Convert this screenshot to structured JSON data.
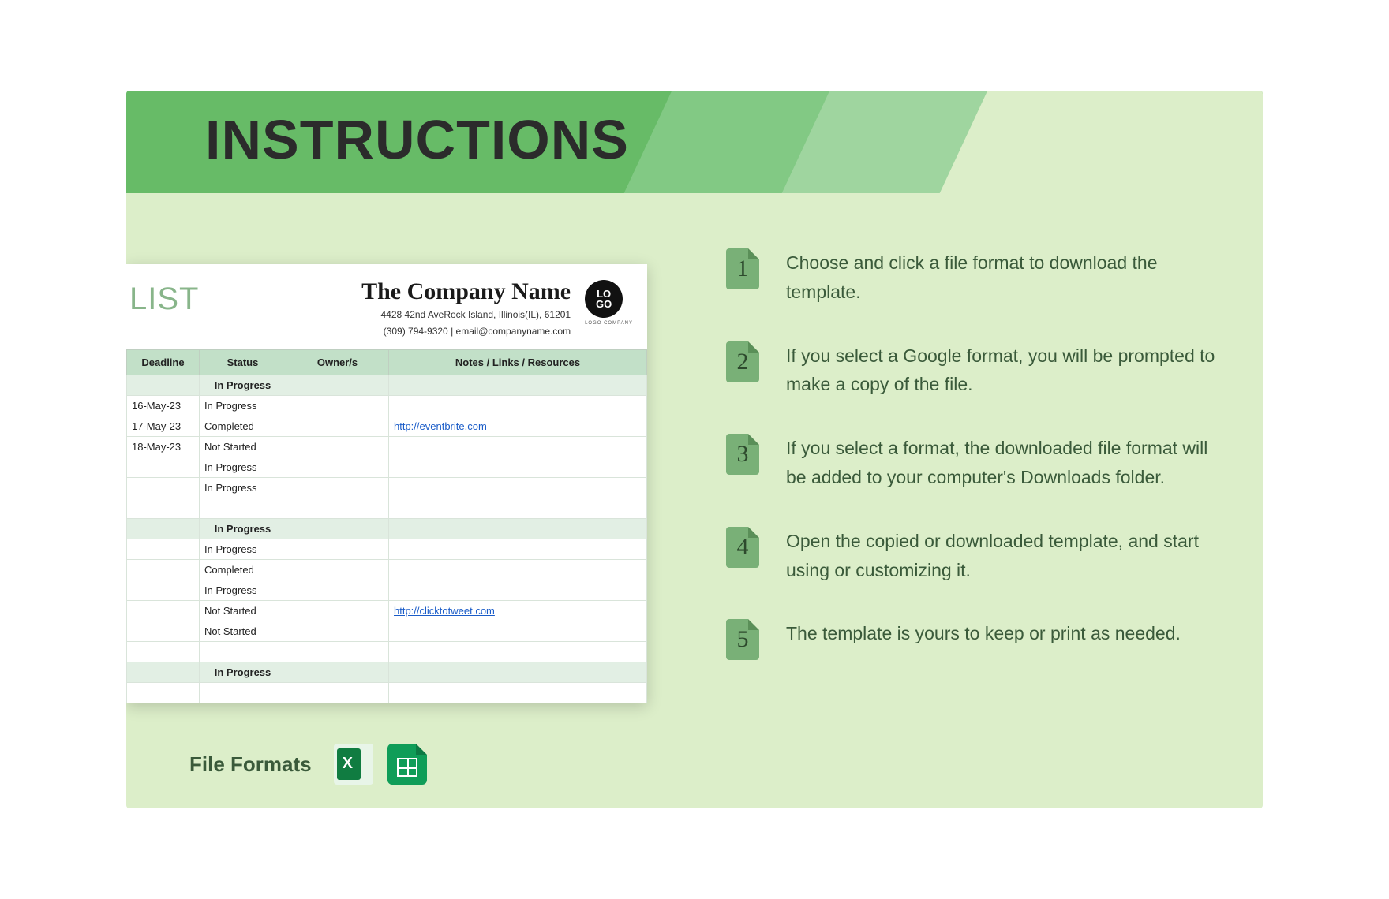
{
  "header": {
    "title": "INSTRUCTIONS"
  },
  "colors": {
    "page_bg": "#dceec9",
    "banner": "#67bb67",
    "stripe1": "#82c984",
    "stripe2": "#9fd59f",
    "badge": "#79b077",
    "badge_fold": "#5a8f58",
    "text_green": "#3a5a3a",
    "table_header_bg": "#c2e0c8",
    "section_bg": "#e2efe4",
    "link": "#1a5cc8"
  },
  "steps": [
    {
      "n": "1",
      "text": "Choose and click a file format to download the template."
    },
    {
      "n": "2",
      "text": "If you select a Google format, you will be prompted to make a copy of the file."
    },
    {
      "n": "3",
      "text": "If you select a format, the downloaded file format will be added to your computer's Downloads folder."
    },
    {
      "n": "4",
      "text": "Open the copied or downloaded template, and start using or customizing it."
    },
    {
      "n": "5",
      "text": "The template is yours to keep or print as needed."
    }
  ],
  "sheet": {
    "list_label": "LIST",
    "company": {
      "name": "The Company Name",
      "address": "4428 42nd AveRock Island, Illinois(IL), 61201",
      "contact": "(309) 794-9320 | email@companyname.com",
      "logo_text_top": "LO",
      "logo_text_bottom": "GO",
      "logo_sub": "LOGO COMPANY"
    },
    "columns": [
      "Deadline",
      "Status",
      "Owner/s",
      "Notes / Links / Resources"
    ],
    "rows": [
      {
        "type": "section",
        "status": "In Progress"
      },
      {
        "deadline": "16-May-23",
        "status": "In Progress",
        "owner": "",
        "notes": ""
      },
      {
        "deadline": "17-May-23",
        "status": "Completed",
        "owner": "",
        "notes": "http://eventbrite.com",
        "is_link": true
      },
      {
        "deadline": "18-May-23",
        "status": "Not Started",
        "owner": "",
        "notes": ""
      },
      {
        "deadline": "",
        "status": "In Progress",
        "owner": "",
        "notes": ""
      },
      {
        "deadline": "",
        "status": "In Progress",
        "owner": "",
        "notes": ""
      },
      {
        "type": "spacer"
      },
      {
        "type": "section",
        "status": "In Progress"
      },
      {
        "deadline": "",
        "status": "In Progress",
        "owner": "",
        "notes": ""
      },
      {
        "deadline": "",
        "status": "Completed",
        "owner": "",
        "notes": ""
      },
      {
        "deadline": "",
        "status": "In Progress",
        "owner": "",
        "notes": ""
      },
      {
        "deadline": "",
        "status": "Not Started",
        "owner": "",
        "notes": "http://clicktotweet.com",
        "is_link": true
      },
      {
        "deadline": "",
        "status": "Not Started",
        "owner": "",
        "notes": ""
      },
      {
        "type": "spacer"
      },
      {
        "type": "section",
        "status": "In Progress"
      },
      {
        "type": "spacer"
      }
    ]
  },
  "footer": {
    "label": "File Formats",
    "formats": [
      {
        "name": "excel-icon"
      },
      {
        "name": "google-sheets-icon"
      }
    ]
  }
}
